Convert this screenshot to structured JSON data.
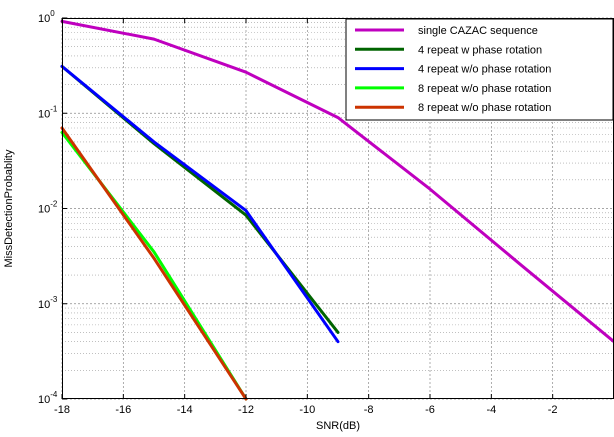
{
  "chart_data": {
    "type": "line",
    "xlabel": "SNR(dB)",
    "ylabel": "MissDetectionProbablity",
    "xlim": [
      -18,
      0
    ],
    "ylim": [
      0.0001,
      1
    ],
    "yscale": "log",
    "grid": true,
    "legend_position": "top-right",
    "x_ticks": [
      -18,
      -16,
      -14,
      -12,
      -10,
      -8,
      -6,
      -4,
      -2
    ],
    "y_ticks": [
      {
        "value": 1,
        "base": "10",
        "exp": "0"
      },
      {
        "value": 0.1,
        "base": "10",
        "exp": "-1"
      },
      {
        "value": 0.01,
        "base": "10",
        "exp": "-2"
      },
      {
        "value": 0.001,
        "base": "10",
        "exp": "-3"
      },
      {
        "value": 0.0001,
        "base": "10",
        "exp": "-4"
      }
    ],
    "series": [
      {
        "name": "single CAZAC sequence",
        "color": "#bf00bf",
        "x": [
          -18,
          -15,
          -12,
          -9,
          -6,
          -3,
          0
        ],
        "y": [
          0.92,
          0.6,
          0.27,
          0.09,
          0.016,
          0.0025,
          0.0004
        ]
      },
      {
        "name": "4 repeat  w  phase rotation",
        "color": "#006400",
        "x": [
          -18,
          -15,
          -12,
          -9
        ],
        "y": [
          0.31,
          0.048,
          0.0085,
          0.0005
        ]
      },
      {
        "name": "4 repeat w/o  phase rotation",
        "color": "#0000ff",
        "x": [
          -18,
          -15,
          -12,
          -9
        ],
        "y": [
          0.31,
          0.05,
          0.0095,
          0.0004
        ]
      },
      {
        "name": "8 repeat  w/o  phase rotation",
        "color": "#00ff00",
        "x": [
          -18,
          -15,
          -12
        ],
        "y": [
          0.063,
          0.0035,
          0.0001
        ]
      },
      {
        "name": "8 repeat w/o   phase rotation",
        "color": "#cc3300",
        "x": [
          -18,
          -15,
          -12
        ],
        "y": [
          0.07,
          0.003,
          0.0001
        ]
      }
    ]
  }
}
